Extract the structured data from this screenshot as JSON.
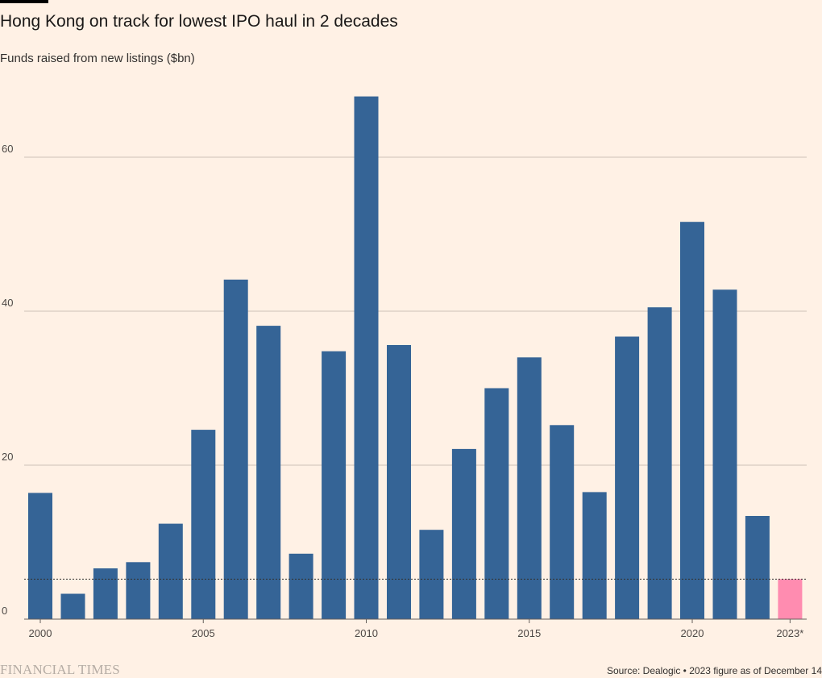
{
  "header": {
    "title": "Hong Kong on track for lowest IPO haul in 2 decades",
    "subtitle": "Funds raised from new listings ($bn)"
  },
  "footer": {
    "brand": "FINANCIAL TIMES",
    "source": "Source: Dealogic • 2023 figure as of December 14"
  },
  "colors": {
    "background": "#FFF1E5",
    "bar": "#356496",
    "highlight": "#FF8CB0",
    "gridline": "#ccc1b7",
    "reference_line": "#33302E"
  },
  "chart_data": {
    "type": "bar",
    "title": "Hong Kong on track for lowest IPO haul in 2 decades",
    "ylabel": "Funds raised from new listings ($bn)",
    "xlabel": "",
    "categories": [
      "2000",
      "2001",
      "2002",
      "2003",
      "2004",
      "2005",
      "2006",
      "2007",
      "2008",
      "2009",
      "2010",
      "2011",
      "2012",
      "2013",
      "2014",
      "2015",
      "2016",
      "2017",
      "2018",
      "2019",
      "2020",
      "2021",
      "2022",
      "2023*"
    ],
    "values": [
      16.4,
      3.3,
      6.6,
      7.4,
      12.4,
      24.6,
      44.1,
      38.1,
      8.5,
      34.8,
      67.9,
      35.6,
      11.6,
      22.1,
      30.0,
      34.0,
      25.2,
      16.5,
      36.7,
      40.5,
      51.6,
      42.8,
      13.4,
      5.2
    ],
    "highlight_category": "2023*",
    "reference_line": {
      "value": 5.2,
      "style": "dotted"
    },
    "ylim": [
      0,
      70
    ],
    "yticks": [
      0,
      20,
      40,
      60
    ],
    "xtick_labels": [
      "2000",
      "2005",
      "2010",
      "2015",
      "2020",
      "2023*"
    ],
    "grid": "horizontal",
    "legend": "none"
  }
}
